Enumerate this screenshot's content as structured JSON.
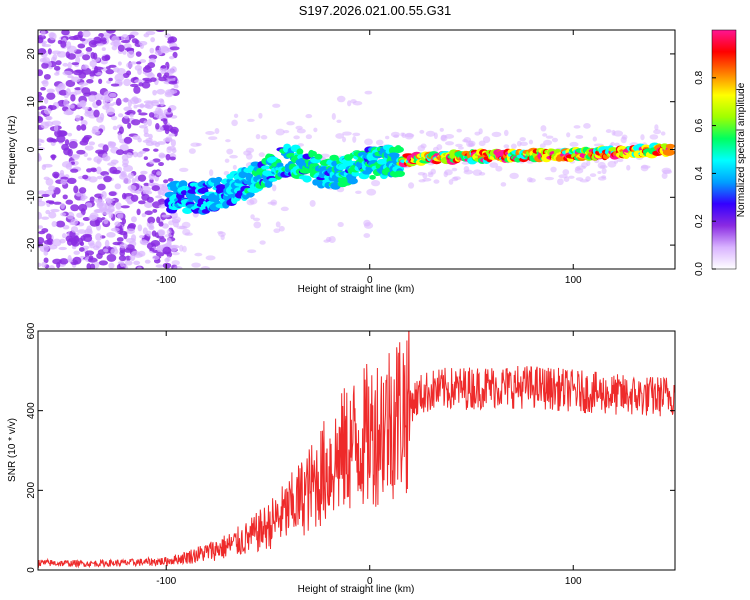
{
  "figure_title": "S197.2026.021.00.55.G31",
  "chart_data": [
    {
      "type": "heatmap",
      "title": "S197.2026.021.00.55.G31",
      "xlabel": "Height of straight line (km)",
      "ylabel": "Frequency (Hz)",
      "xlim": [
        -163,
        150
      ],
      "ylim": [
        -25,
        25
      ],
      "xticks": [
        -100,
        0,
        100
      ],
      "yticks": [
        -20,
        -10,
        0,
        10,
        20
      ],
      "colorbar": {
        "label": "Normalized spectral amplitude",
        "range": [
          0,
          1
        ],
        "ticks": [
          "0.0",
          "0.2",
          "0.4",
          "0.6",
          "0.8"
        ],
        "colors": [
          "#ffffff",
          "#d9b3ff",
          "#8a2be2",
          "#3300ff",
          "#00a0ff",
          "#00ffff",
          "#00ff60",
          "#a0ff00",
          "#ffff00",
          "#ff8000",
          "#ff0000",
          "#ff1493"
        ]
      },
      "ridge": {
        "description_points_x": [
          -100,
          -80,
          -60,
          -40,
          -20,
          0,
          20,
          50,
          100,
          150
        ],
        "description_points_y": [
          -10,
          -10,
          -7,
          -2,
          -5,
          -3,
          -2,
          -1.5,
          -1,
          0
        ]
      }
    },
    {
      "type": "line",
      "xlabel": "Height of straight line (km)",
      "ylabel": "SNR (10 * v/v)",
      "xlim": [
        -163,
        150
      ],
      "ylim": [
        0,
        600
      ],
      "xticks": [
        -100,
        0,
        100
      ],
      "yticks": [
        0,
        200,
        400,
        600
      ],
      "series": [
        {
          "name": "SNR",
          "color": "#ee2a2a",
          "x": [
            -163,
            -140,
            -120,
            -100,
            -90,
            -80,
            -70,
            -60,
            -50,
            -40,
            -30,
            -20,
            -10,
            0,
            10,
            20,
            25,
            30,
            40,
            60,
            80,
            100,
            120,
            140,
            150
          ],
          "y": [
            18,
            16,
            18,
            22,
            32,
            45,
            60,
            80,
            110,
            150,
            200,
            260,
            310,
            340,
            380,
            420,
            440,
            450,
            455,
            460,
            460,
            450,
            440,
            435,
            440
          ]
        }
      ]
    }
  ]
}
